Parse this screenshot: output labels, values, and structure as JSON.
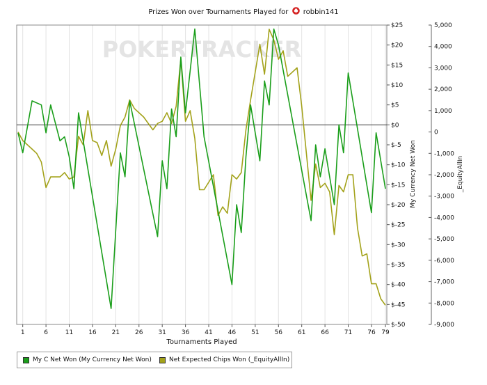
{
  "title": {
    "text": "Prizes Won over Tournaments Played for",
    "player": "robbin141",
    "icon": "spade-icon",
    "icon_color": "#d42020"
  },
  "watermark": {
    "text": "POKERTRACKER",
    "color": "#e4e4e4"
  },
  "chart_data": {
    "type": "line",
    "xlabel": "Tournaments Played",
    "ylabel_left": "",
    "ylabel_right": "My Currency Net Won",
    "ylabel_right2": "_EquityAllIn",
    "xlim": [
      0,
      79
    ],
    "x_ticks": [
      1,
      6,
      11,
      16,
      21,
      26,
      31,
      36,
      41,
      46,
      51,
      56,
      61,
      66,
      71,
      76,
      79
    ],
    "ylim_currency": [
      -50,
      25
    ],
    "y_ticks_currency": [
      25,
      20,
      15,
      10,
      5,
      0,
      -5,
      -10,
      -15,
      -20,
      -25,
      -30,
      -35,
      -40,
      -45,
      -50
    ],
    "y_tick_labels_currency": [
      "$25",
      "$20",
      "$15",
      "$10",
      "$5",
      "$0",
      "$-5",
      "$-10",
      "$-15",
      "$-20",
      "$-25",
      "$-30",
      "$-35",
      "$-40",
      "$-45",
      "$-50"
    ],
    "ylim_chips": [
      -9000,
      5000
    ],
    "y_tick_labels_chips": [
      "5,000",
      "4,000",
      "3,000",
      "2,000",
      "1,000",
      "0",
      "-1,000",
      "-2,000",
      "-3,000",
      "-4,000",
      "-5,000",
      "-6,000",
      "-7,000",
      "-8,000",
      "-9,000"
    ],
    "grid": "vertical",
    "legend_position": "bottom-left",
    "series": [
      {
        "name": "My C Net Won (My Currency Net Won)",
        "color": "#1a9e1a",
        "axis": "currency",
        "x": [
          0,
          1,
          3,
          5,
          6,
          7,
          9,
          10,
          11,
          12,
          13,
          20,
          22,
          23,
          24,
          30,
          31,
          32,
          33,
          34,
          35,
          36,
          38,
          40,
          46,
          47,
          48,
          49,
          50,
          52,
          53,
          54,
          55,
          56,
          63,
          64,
          65,
          66,
          68,
          69,
          70,
          71,
          76,
          77,
          79
        ],
        "y": [
          -2,
          -7,
          6,
          5,
          -2,
          5,
          -4,
          -3,
          -8,
          -16,
          3,
          -46,
          -7,
          -13,
          6,
          -28,
          -9,
          -16,
          4,
          -3,
          17,
          3,
          24,
          -3,
          -40,
          -20,
          -27,
          -8,
          5,
          -9,
          11,
          5,
          24,
          20,
          -24,
          -5,
          -13,
          -6,
          -20,
          0,
          -7,
          13,
          -22,
          -2,
          -16
        ]
      },
      {
        "name": "Net Expected Chips Won (_EquityAllIn)",
        "color": "#a3a21a",
        "axis": "chips",
        "x": [
          0,
          1,
          3,
          4,
          5,
          6,
          7,
          9,
          10,
          11,
          12,
          13,
          14,
          15,
          16,
          17,
          18,
          19,
          20,
          21,
          22,
          23,
          24,
          25,
          27,
          29,
          30,
          31,
          32,
          33,
          34,
          35,
          36,
          37,
          38,
          39,
          40,
          42,
          43,
          44,
          45,
          46,
          47,
          48,
          49,
          50,
          52,
          53,
          54,
          55,
          56,
          57,
          58,
          60,
          61,
          63,
          64,
          65,
          66,
          67,
          68,
          69,
          70,
          71,
          72,
          73,
          74,
          75,
          76,
          77,
          78,
          79
        ],
        "y": [
          0,
          -400,
          -800,
          -1000,
          -1400,
          -2600,
          -2100,
          -2100,
          -1900,
          -2200,
          -2100,
          -200,
          -600,
          1000,
          -400,
          -500,
          -1100,
          -400,
          -1600,
          -800,
          300,
          700,
          1500,
          1100,
          700,
          100,
          400,
          500,
          900,
          400,
          1200,
          3400,
          500,
          1000,
          -300,
          -2700,
          -2700,
          -2000,
          -3900,
          -3500,
          -3800,
          -2000,
          -2200,
          -1900,
          100,
          1500,
          4100,
          2700,
          4800,
          4300,
          3400,
          3800,
          2600,
          3000,
          1200,
          -3200,
          -1500,
          -2600,
          -2400,
          -2800,
          -4800,
          -2500,
          -2800,
          -2000,
          -2000,
          -4500,
          -5800,
          -5700,
          -7100,
          -7100,
          -7800,
          -8100
        ]
      }
    ]
  }
}
